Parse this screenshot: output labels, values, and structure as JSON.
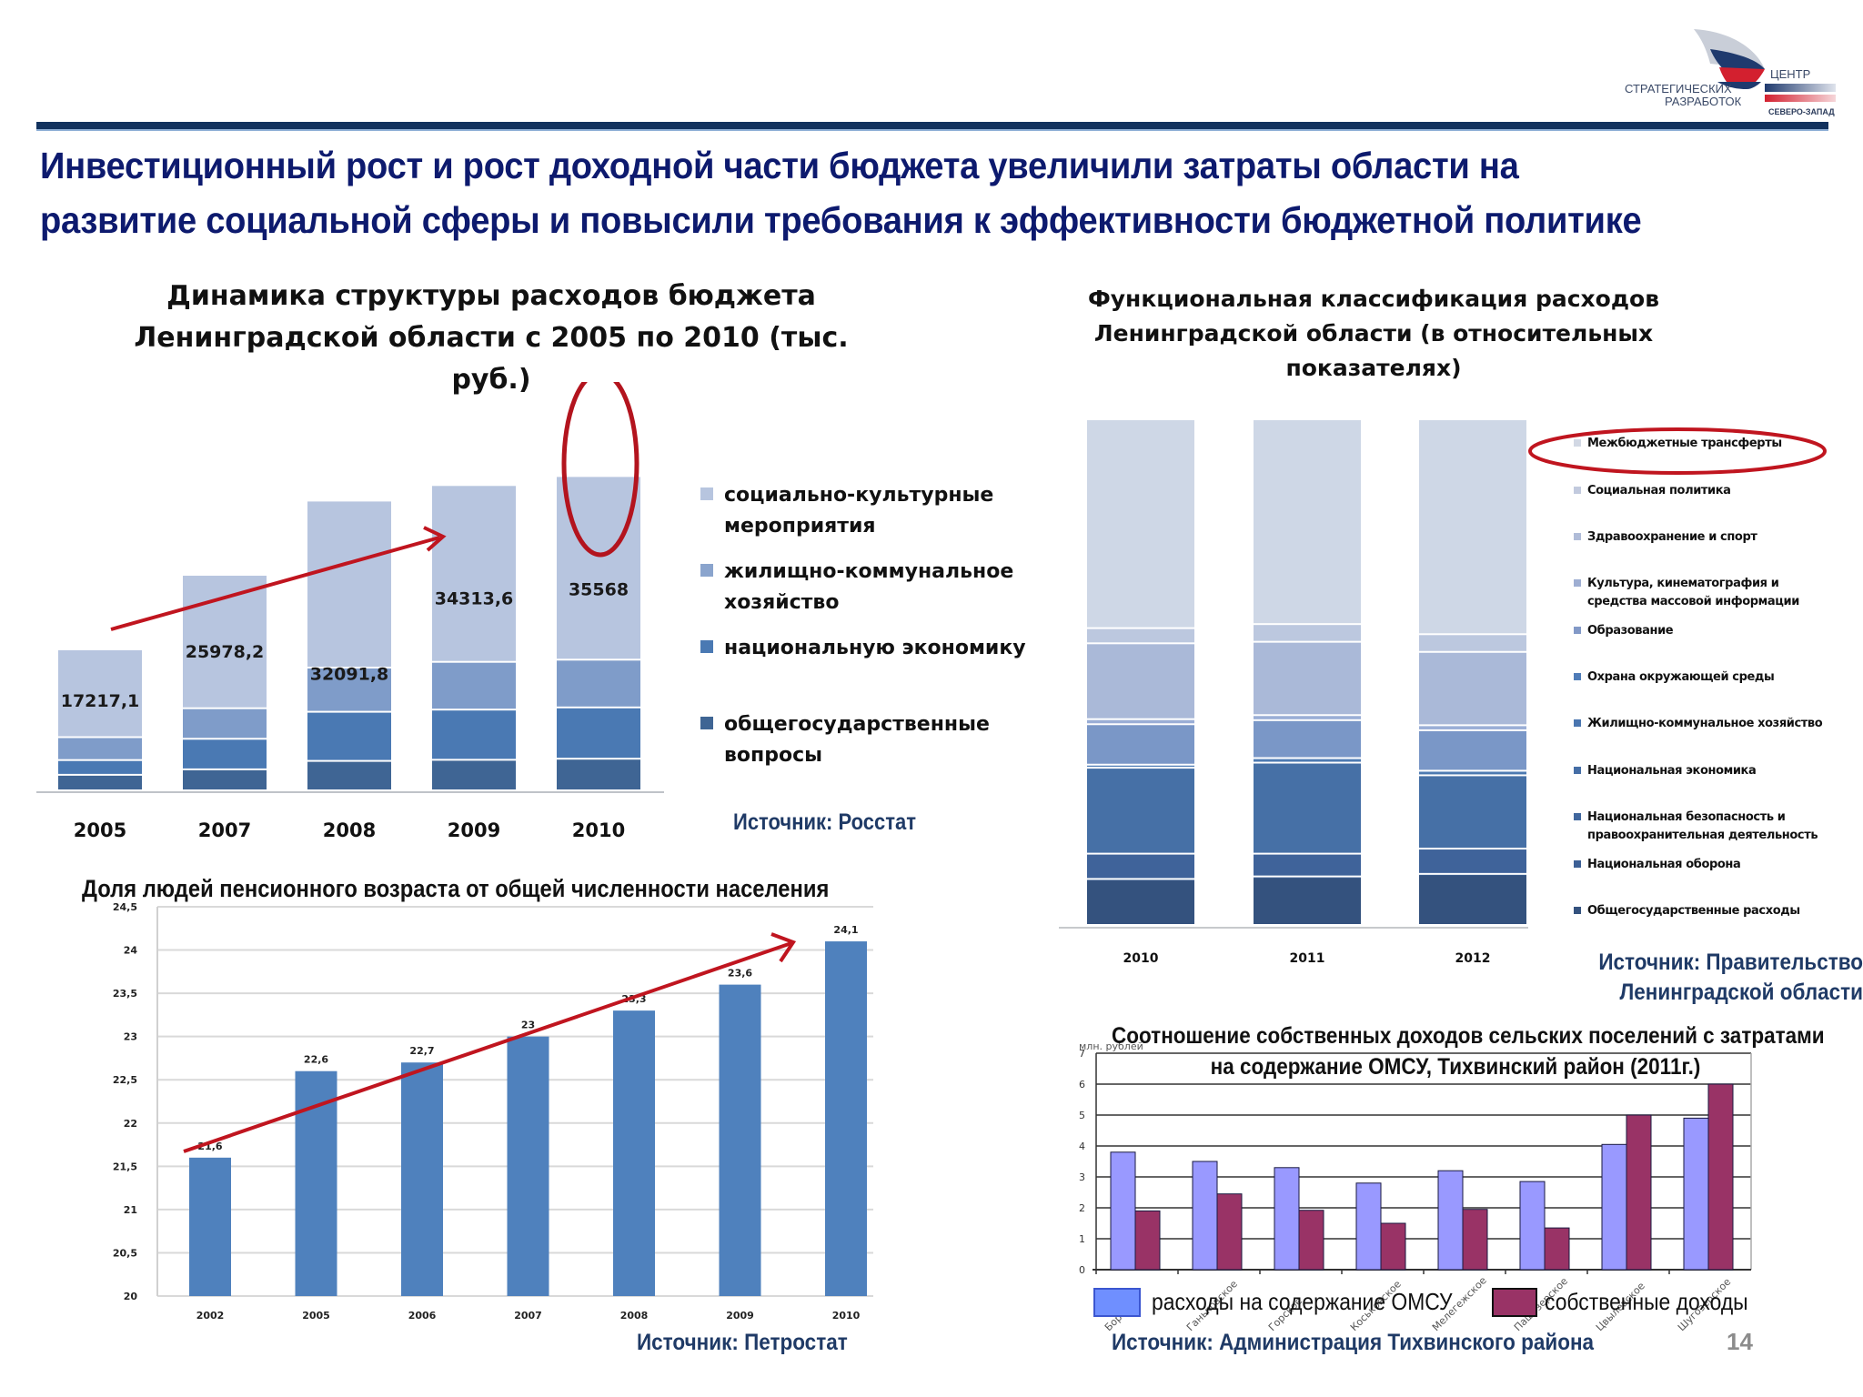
{
  "logo": {
    "line1": "ЦЕНТР",
    "line2": "СТРАТЕГИЧЕСКИХ",
    "line3": "РАЗРАБОТОК",
    "line4": "СЕВЕРО-ЗАПАД",
    "colors": {
      "navy": "#1f3a6e",
      "red": "#d3202f",
      "grey": "#c9ced8"
    }
  },
  "header": {
    "title_line1": "Инвестиционный рост и рост доходной части бюджета увеличили затраты области на",
    "title_line2": "развитие социальной сферы и повысили требования к эффективности бюджетной политике",
    "accent_color": "#12325e",
    "title_color": "#0d1a6e"
  },
  "page_number": "14",
  "chart_data": [
    {
      "id": "budget-structure",
      "type": "bar",
      "stacked": true,
      "title": "Динамика структуры расходов бюджета Ленинградской области с 2005 по 2010 (тыс. руб.)",
      "title_line1": "Динамика структуры расходов бюджета",
      "title_line2": "Ленинградской области с 2005 по 2010 (тыс. руб.)",
      "categories": [
        "2005",
        "2007",
        "2008",
        "2009",
        "2010"
      ],
      "series": [
        {
          "name": "общегосударственные вопросы",
          "color": "#3f6594",
          "values": [
            5.7,
            7.7,
            10.8,
            11.2,
            11.6
          ]
        },
        {
          "name": "национальную экономику",
          "color": "#4a79b3",
          "values": [
            5.4,
            11.2,
            18.0,
            18.4,
            18.8
          ]
        },
        {
          "name": "жилищно-коммунальное хозяйство",
          "color": "#7f9cc9",
          "values": [
            8.4,
            11.2,
            16.2,
            17.5,
            17.5
          ]
        },
        {
          "name": "социально-культурные мероприятия",
          "color": "#b7c5df",
          "values": [
            32.2,
            48.9,
            61.2,
            64.8,
            67.3
          ]
        }
      ],
      "data_labels": [
        "17217,1",
        "25978,2",
        "32091,8",
        "34313,6",
        "35568"
      ],
      "legend": [
        {
          "label_line1": "социально-культурные",
          "label_line2": "мероприятия",
          "color": "#b7c5df"
        },
        {
          "label_line1": "жилищно-коммунальное",
          "label_line2": "хозяйство",
          "color": "#8aa4cd"
        },
        {
          "label_line1": "национальную  экономику",
          "label_line2": "",
          "color": "#4a79b3"
        },
        {
          "label_line1": "общегосударственные",
          "label_line2": "вопросы",
          "color": "#3f6594"
        }
      ],
      "annotations": [
        "red trend arrow from 2005 to 2010",
        "red ellipse highlighting 2010 bar"
      ],
      "source": "Источник: Росстат",
      "xlabel": "",
      "ylabel": "",
      "grid": false
    },
    {
      "id": "functional-classification",
      "type": "bar",
      "stacked": true,
      "normalized": true,
      "title": "Функциональная классификация расходов Ленинградской области (в относительных показателях)",
      "title_line1": "Функциональная классификация расходов",
      "title_line2": "Ленинградской области (в относительных",
      "title_line3": "показателях)",
      "categories": [
        "2010",
        "2011",
        "2012"
      ],
      "series": [
        {
          "name": "Общегосударственные расходы",
          "color": "#34527e",
          "values": [
            9.0,
            9.5,
            10.0
          ]
        },
        {
          "name": "Национальная оборона",
          "color": "#3c5f92",
          "values": [
            0.1,
            0.1,
            0.1
          ]
        },
        {
          "name": "Национальная безопасность и правоохранительная деятельность",
          "color": "#3f639a",
          "values": [
            5.0,
            4.5,
            5.0
          ]
        },
        {
          "name": "Национальная экономика",
          "color": "#4670a6",
          "values": [
            17.0,
            18.0,
            14.5
          ]
        },
        {
          "name": "Жилищно-коммунальное хозяйство",
          "color": "#4b78b0",
          "values": [
            0.5,
            0.8,
            0.8
          ]
        },
        {
          "name": "Охрана окружающей среды",
          "color": "#5a86bd",
          "values": [
            0.1,
            0.1,
            0.1
          ]
        },
        {
          "name": "Образование",
          "color": "#7a97c7",
          "values": [
            8.0,
            7.5,
            8.0
          ]
        },
        {
          "name": "Культура, кинематография и средства массовой информации",
          "color": "#9aaed6",
          "values": [
            1.0,
            1.0,
            1.0
          ]
        },
        {
          "name": "Здравоохранение и спорт",
          "color": "#aab9d8",
          "values": [
            15.0,
            14.5,
            14.5
          ]
        },
        {
          "name": "Социальная политика",
          "color": "#bcc8df",
          "values": [
            3.0,
            3.5,
            3.5
          ]
        },
        {
          "name": "Межбюджетные трансферты",
          "color": "#ced7e6",
          "values": [
            41.3,
            40.5,
            42.5
          ]
        }
      ],
      "legend": [
        {
          "label": "Межбюджетные трансферты",
          "color": "#d2d8e4"
        },
        {
          "label": "Социальная политика",
          "color": "#c2cade"
        },
        {
          "label": "Здравоохранение и спорт",
          "color": "#b0bcd8"
        },
        {
          "label": "Культура, кинематография и",
          "label_line2": "средства массовой информации",
          "color": "#9eaed2"
        },
        {
          "label": "Образование",
          "color": "#8299c7"
        },
        {
          "label": "Охрана окружающей среды",
          "color": "#4f7cb8"
        },
        {
          "label": "Жилищно-коммунальное хозяйство",
          "color": "#4a76b0"
        },
        {
          "label": "Национальная экономика",
          "color": "#456ea6"
        },
        {
          "label": "Национальная безопасность и",
          "label_line2": "правоохранительная деятельность",
          "color": "#41679e"
        },
        {
          "label": "Национальная оборона",
          "color": "#3d6096"
        },
        {
          "label": "Общегосударственные расходы",
          "color": "#34527e"
        }
      ],
      "annotations": [
        "red ellipse highlighting legend item Межбюджетные трансферты"
      ],
      "source_line1": "Источник: Правительство",
      "source_line2": "Ленинградской области",
      "grid": false
    },
    {
      "id": "pension-age-share",
      "type": "bar",
      "title": "Доля людей пенсионного возраста от общей численности населения",
      "categories": [
        "2002",
        "2005",
        "2006",
        "2007",
        "2008",
        "2009",
        "2010"
      ],
      "values": [
        21.6,
        22.6,
        22.7,
        23.0,
        23.3,
        23.6,
        24.1
      ],
      "data_labels": [
        "21,6",
        "22,6",
        "22,7",
        "23",
        "23,3",
        "23,6",
        "24,1"
      ],
      "color": "#4f81bd",
      "ylim": [
        20,
        24.5
      ],
      "yticks": [
        "20",
        "20,5",
        "21",
        "21,5",
        "22",
        "22,5",
        "23",
        "23,5",
        "24",
        "24,5"
      ],
      "grid": true,
      "annotations": [
        "red trend arrow from 2002 to 2010"
      ],
      "source": "Источник: Петростат",
      "xlabel": "",
      "ylabel": ""
    },
    {
      "id": "rural-settlements",
      "type": "bar",
      "title": "Соотношение собственных доходов сельских поселений с затратами на содержание ОМСУ, Тихвинский район (2011г.)",
      "title_line1": "Соотношение собственных доходов сельских поселений с затратами",
      "title_line2": "на содержание ОМСУ, Тихвинский район (2011г.)",
      "ylabel": "млн. рублей",
      "categories": [
        "Борское",
        "Ганьковское",
        "Горское",
        "Коськовское",
        "Мелегежское",
        "Пашозерское",
        "Цвылевское",
        "Шугозерское"
      ],
      "series": [
        {
          "name": "расходы на содержание ОМСУ",
          "color": "#9999ff",
          "values": [
            3.8,
            3.5,
            3.3,
            2.8,
            3.2,
            2.85,
            4.05,
            4.9
          ]
        },
        {
          "name": "собственные доходы",
          "color": "#993366",
          "values": [
            1.9,
            2.45,
            1.92,
            1.5,
            1.95,
            1.35,
            5.0,
            6.0
          ]
        }
      ],
      "ylim": [
        0,
        7
      ],
      "yticks": [
        "0",
        "1",
        "2",
        "3",
        "4",
        "5",
        "6",
        "7"
      ],
      "grid": true,
      "legend_position": "bottom",
      "source": "Источник: Администрация Тихвинского района"
    }
  ]
}
